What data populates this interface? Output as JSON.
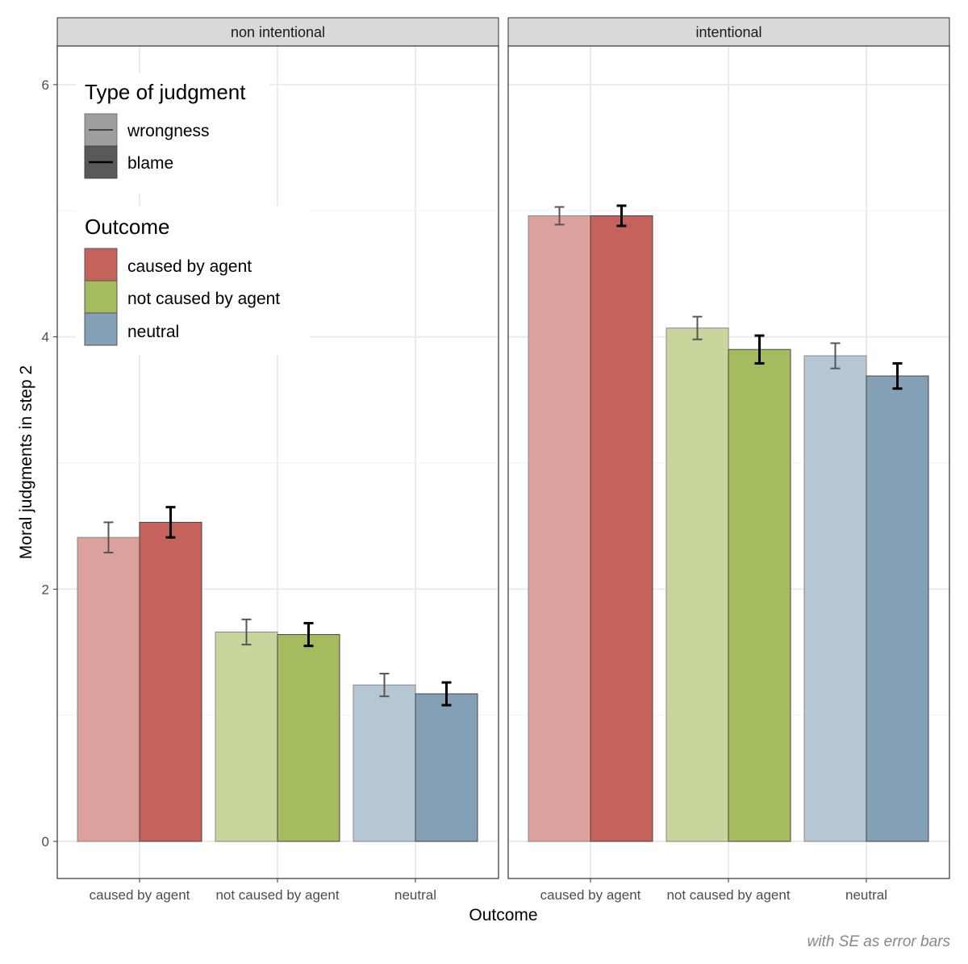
{
  "chart_data": {
    "type": "bar",
    "facets": [
      "non intentional",
      "intentional"
    ],
    "categories": [
      "caused by agent",
      "not caused by agent",
      "neutral"
    ],
    "xlabel": "Outcome",
    "ylabel": "Moral judgments in step 2",
    "ylim": [
      -0.3,
      6.3
    ],
    "yticks": [
      "0",
      "2",
      "4",
      "6"
    ],
    "grid": true,
    "caption": "with SE as error bars",
    "legend": {
      "placement": "top-left inside",
      "judgment_title": "Type of judgment",
      "judgment_items": [
        "wrongness",
        "blame"
      ],
      "outcome_title": "Outcome",
      "outcome_items": [
        "caused by agent",
        "not caused by agent",
        "neutral"
      ]
    },
    "colors": {
      "caused by agent": "#c6625c",
      "not caused by agent": "#a4bb5e",
      "neutral": "#84a0b7"
    },
    "series": [
      {
        "name": "wrongness",
        "facet": "non intentional",
        "values": [
          2.41,
          1.66,
          1.24
        ],
        "se": [
          0.12,
          0.1,
          0.09
        ]
      },
      {
        "name": "blame",
        "facet": "non intentional",
        "values": [
          2.53,
          1.64,
          1.17
        ],
        "se": [
          0.12,
          0.09,
          0.09
        ]
      },
      {
        "name": "wrongness",
        "facet": "intentional",
        "values": [
          4.96,
          4.07,
          3.85
        ],
        "se": [
          0.07,
          0.09,
          0.1
        ]
      },
      {
        "name": "blame",
        "facet": "intentional",
        "values": [
          4.96,
          3.9,
          3.69
        ],
        "se": [
          0.08,
          0.11,
          0.1
        ]
      }
    ]
  }
}
